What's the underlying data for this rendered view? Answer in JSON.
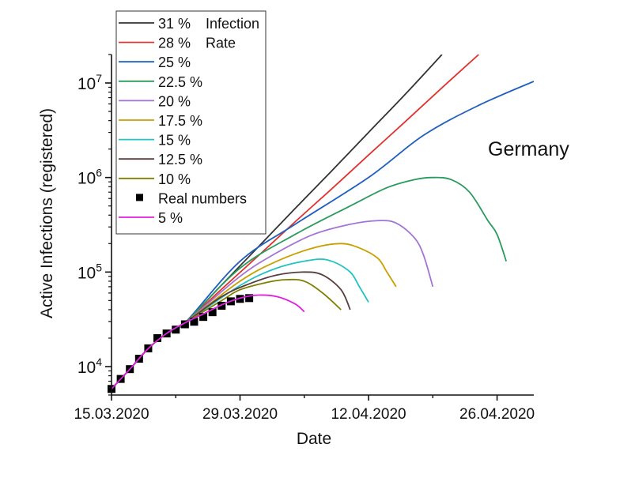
{
  "chart_data": {
    "type": "line",
    "xlabel": "Date",
    "ylabel": "Active Infections (registered)",
    "annotation": "Germany",
    "xlim": [
      "2020-03-15",
      "2020-04-30"
    ],
    "ylim": [
      5000,
      20000000
    ],
    "yscale": "log",
    "x_ticks": [
      {
        "date": "2020-03-15",
        "label": "15.03.2020"
      },
      {
        "date": "2020-03-29",
        "label": "29.03.2020"
      },
      {
        "date": "2020-04-12",
        "label": "12.04.2020"
      },
      {
        "date": "2020-04-26",
        "label": "26.04.2020"
      }
    ],
    "x_minor_ticks": [
      "2020-03-22",
      "2020-04-05",
      "2020-04-19"
    ],
    "y_ticks": [
      {
        "value": 10000,
        "base": "10",
        "exp": "4"
      },
      {
        "value": 100000,
        "base": "10",
        "exp": "5"
      },
      {
        "value": 1000000,
        "base": "10",
        "exp": "6"
      },
      {
        "value": 10000000,
        "base": "10",
        "exp": "7"
      }
    ],
    "grid": false,
    "legend_placement": "top-left",
    "legend_extra": [
      "Infection",
      "Rate"
    ],
    "series": [
      {
        "name": "31 %",
        "color": "#333333",
        "kind": "line",
        "points": [
          [
            "2020-03-15",
            5800
          ],
          [
            "2020-03-17",
            9400
          ],
          [
            "2020-03-19",
            15500
          ],
          [
            "2020-03-21",
            22400
          ],
          [
            "2020-03-23",
            29000
          ],
          [
            "2020-03-27",
            73000
          ],
          [
            "2020-03-31",
            185000
          ],
          [
            "2020-04-04",
            470000
          ],
          [
            "2020-04-08",
            1180000
          ],
          [
            "2020-04-12",
            3000000
          ],
          [
            "2020-04-16",
            7600000
          ],
          [
            "2020-04-20",
            20000000
          ]
        ]
      },
      {
        "name": "28 %",
        "color": "#e0322e",
        "kind": "line",
        "points": [
          [
            "2020-03-15",
            5800
          ],
          [
            "2020-03-17",
            9400
          ],
          [
            "2020-03-19",
            15500
          ],
          [
            "2020-03-21",
            22400
          ],
          [
            "2020-03-23",
            29000
          ],
          [
            "2020-03-27",
            66000
          ],
          [
            "2020-03-31",
            149000
          ],
          [
            "2020-04-04",
            340000
          ],
          [
            "2020-04-08",
            760000
          ],
          [
            "2020-04-12",
            1730000
          ],
          [
            "2020-04-16",
            3900000
          ],
          [
            "2020-04-20",
            8900000
          ],
          [
            "2020-04-24",
            20000000
          ]
        ]
      },
      {
        "name": "25 %",
        "color": "#1f5fbf",
        "kind": "line",
        "points": [
          [
            "2020-03-15",
            5800
          ],
          [
            "2020-03-17",
            9400
          ],
          [
            "2020-03-19",
            15500
          ],
          [
            "2020-03-21",
            22400
          ],
          [
            "2020-03-23",
            29000
          ],
          [
            "2020-03-29",
            130000
          ],
          [
            "2020-04-04",
            320000
          ],
          [
            "2020-04-12",
            1000000
          ],
          [
            "2020-04-18",
            2800000
          ],
          [
            "2020-04-24",
            5800000
          ],
          [
            "2020-04-30",
            10400000
          ]
        ]
      },
      {
        "name": "22.5 %",
        "color": "#2a9a5e",
        "kind": "line",
        "points": [
          [
            "2020-03-15",
            5800
          ],
          [
            "2020-03-17",
            9400
          ],
          [
            "2020-03-19",
            15500
          ],
          [
            "2020-03-21",
            22400
          ],
          [
            "2020-03-23",
            29000
          ],
          [
            "2020-03-29",
            110000
          ],
          [
            "2020-04-04",
            250000
          ],
          [
            "2020-04-10",
            500000
          ],
          [
            "2020-04-14",
            780000
          ],
          [
            "2020-04-17",
            950000
          ],
          [
            "2020-04-19",
            1000000
          ],
          [
            "2020-04-21",
            950000
          ],
          [
            "2020-04-23",
            700000
          ],
          [
            "2020-04-25",
            350000
          ],
          [
            "2020-04-26",
            250000
          ],
          [
            "2020-04-27",
            130000
          ]
        ]
      },
      {
        "name": "20 %",
        "color": "#a374d6",
        "kind": "line",
        "points": [
          [
            "2020-03-15",
            5800
          ],
          [
            "2020-03-17",
            9400
          ],
          [
            "2020-03-19",
            15500
          ],
          [
            "2020-03-21",
            22400
          ],
          [
            "2020-03-23",
            29000
          ],
          [
            "2020-03-29",
            90000
          ],
          [
            "2020-04-02",
            160000
          ],
          [
            "2020-04-06",
            250000
          ],
          [
            "2020-04-10",
            320000
          ],
          [
            "2020-04-13",
            350000
          ],
          [
            "2020-04-15",
            330000
          ],
          [
            "2020-04-17",
            230000
          ],
          [
            "2020-04-18",
            150000
          ],
          [
            "2020-04-19",
            70000
          ]
        ]
      },
      {
        "name": "17.5 %",
        "color": "#c9a000",
        "kind": "line",
        "points": [
          [
            "2020-03-15",
            5800
          ],
          [
            "2020-03-17",
            9400
          ],
          [
            "2020-03-19",
            15500
          ],
          [
            "2020-03-21",
            22400
          ],
          [
            "2020-03-23",
            29000
          ],
          [
            "2020-03-29",
            80000
          ],
          [
            "2020-04-02",
            130000
          ],
          [
            "2020-04-06",
            180000
          ],
          [
            "2020-04-09",
            200000
          ],
          [
            "2020-04-11",
            180000
          ],
          [
            "2020-04-13",
            140000
          ],
          [
            "2020-04-14",
            100000
          ],
          [
            "2020-04-15",
            70000
          ]
        ]
      },
      {
        "name": "15 %",
        "color": "#22c3c3",
        "kind": "line",
        "points": [
          [
            "2020-03-15",
            5800
          ],
          [
            "2020-03-17",
            9400
          ],
          [
            "2020-03-19",
            15500
          ],
          [
            "2020-03-21",
            22400
          ],
          [
            "2020-03-23",
            29000
          ],
          [
            "2020-03-29",
            72000
          ],
          [
            "2020-04-02",
            110000
          ],
          [
            "2020-04-06",
            135000
          ],
          [
            "2020-04-08",
            130000
          ],
          [
            "2020-04-10",
            100000
          ],
          [
            "2020-04-11",
            70000
          ],
          [
            "2020-04-12",
            48000
          ]
        ]
      },
      {
        "name": "12.5 %",
        "color": "#5a3c3c",
        "kind": "line",
        "points": [
          [
            "2020-03-15",
            5800
          ],
          [
            "2020-03-17",
            9400
          ],
          [
            "2020-03-19",
            15500
          ],
          [
            "2020-03-21",
            22400
          ],
          [
            "2020-03-23",
            29000
          ],
          [
            "2020-03-27",
            55000
          ],
          [
            "2020-03-30",
            75000
          ],
          [
            "2020-04-02",
            93000
          ],
          [
            "2020-04-05",
            100000
          ],
          [
            "2020-04-07",
            93000
          ],
          [
            "2020-04-09",
            65000
          ],
          [
            "2020-04-10",
            40000
          ]
        ]
      },
      {
        "name": "10 %",
        "color": "#7f7f00",
        "kind": "line",
        "points": [
          [
            "2020-03-15",
            5800
          ],
          [
            "2020-03-17",
            9400
          ],
          [
            "2020-03-19",
            15500
          ],
          [
            "2020-03-21",
            22400
          ],
          [
            "2020-03-23",
            29000
          ],
          [
            "2020-03-27",
            50000
          ],
          [
            "2020-03-29",
            65000
          ],
          [
            "2020-04-01",
            78000
          ],
          [
            "2020-04-03",
            83000
          ],
          [
            "2020-04-05",
            80000
          ],
          [
            "2020-04-07",
            60000
          ],
          [
            "2020-04-09",
            40000
          ]
        ]
      },
      {
        "name": "Real numbers",
        "color": "#000000",
        "kind": "marker",
        "points": [
          [
            "2020-03-15",
            5800
          ],
          [
            "2020-03-16",
            7400
          ],
          [
            "2020-03-17",
            9400
          ],
          [
            "2020-03-18",
            12100
          ],
          [
            "2020-03-19",
            15600
          ],
          [
            "2020-03-20",
            20000
          ],
          [
            "2020-03-21",
            22400
          ],
          [
            "2020-03-22",
            24600
          ],
          [
            "2020-03-23",
            28000
          ],
          [
            "2020-03-24",
            29800
          ],
          [
            "2020-03-25",
            33500
          ],
          [
            "2020-03-26",
            37600
          ],
          [
            "2020-03-27",
            44000
          ],
          [
            "2020-03-28",
            49000
          ],
          [
            "2020-03-29",
            52000
          ],
          [
            "2020-03-30",
            53000
          ]
        ]
      },
      {
        "name": "5 %",
        "color": "#e020e0",
        "kind": "line",
        "points": [
          [
            "2020-03-15",
            5800
          ],
          [
            "2020-03-17",
            9400
          ],
          [
            "2020-03-19",
            15500
          ],
          [
            "2020-03-21",
            22400
          ],
          [
            "2020-03-23",
            29000
          ],
          [
            "2020-03-25",
            36000
          ],
          [
            "2020-03-27",
            45000
          ],
          [
            "2020-03-29",
            53000
          ],
          [
            "2020-03-31",
            57000
          ],
          [
            "2020-04-02",
            55000
          ],
          [
            "2020-04-04",
            46000
          ],
          [
            "2020-04-05",
            38000
          ]
        ]
      }
    ]
  }
}
